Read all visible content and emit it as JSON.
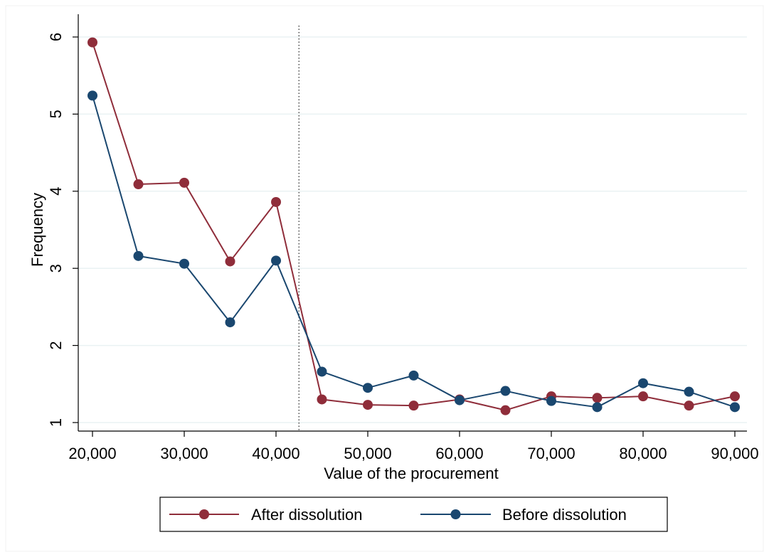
{
  "chart_data": {
    "type": "line",
    "title": "",
    "xlabel": "Value of the procurement",
    "ylabel": "Frequency",
    "xlim": [
      20000,
      90000
    ],
    "ylim": [
      1,
      6
    ],
    "x_ticks": [
      20000,
      30000,
      40000,
      50000,
      60000,
      70000,
      80000,
      90000
    ],
    "x_tick_labels": [
      "20,000",
      "30,000",
      "40,000",
      "50,000",
      "60,000",
      "70,000",
      "80,000",
      "90,000"
    ],
    "y_ticks": [
      1,
      2,
      3,
      4,
      5,
      6
    ],
    "y_tick_labels": [
      "1",
      "2",
      "3",
      "4",
      "5",
      "6"
    ],
    "grid": "horizontal",
    "reference_line": {
      "x": 42500,
      "style": "dotted"
    },
    "legend": {
      "placement": "bottom-center"
    },
    "x": [
      20000,
      25000,
      30000,
      35000,
      40000,
      45000,
      50000,
      55000,
      60000,
      65000,
      70000,
      75000,
      80000,
      85000,
      90000
    ],
    "series": [
      {
        "name": "After dissolution",
        "color": "#8f2d3a",
        "values": [
          5.93,
          4.09,
          4.11,
          3.09,
          3.86,
          1.3,
          1.23,
          1.22,
          1.3,
          1.16,
          1.34,
          1.32,
          1.34,
          1.22,
          1.34
        ]
      },
      {
        "name": "Before dissolution",
        "color": "#1a476f",
        "values": [
          5.24,
          3.16,
          3.06,
          2.3,
          3.1,
          1.66,
          1.45,
          1.61,
          1.29,
          1.41,
          1.28,
          1.2,
          1.51,
          1.4,
          1.2
        ]
      }
    ]
  }
}
